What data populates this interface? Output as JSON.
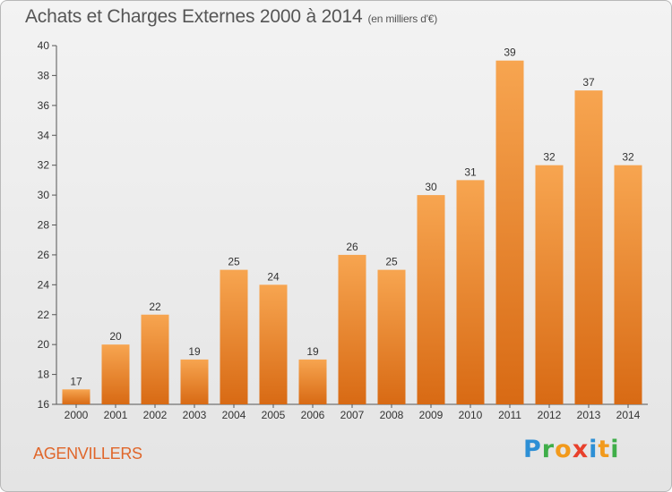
{
  "header": {
    "title": "Achats et Charges Externes 2000 à 2014",
    "unit": "(en milliers d'€)"
  },
  "footer": {
    "commune": "AGENVILLERS",
    "logo_letters": [
      "P",
      "r",
      "o",
      "x",
      "i",
      "t",
      "i"
    ],
    "logo_colors": [
      "#2d8fd5",
      "#3fae49",
      "#f29a1c",
      "#e8402c",
      "#2d8fd5",
      "#f29a1c",
      "#3fae49"
    ]
  },
  "chart_data": {
    "type": "bar",
    "categories": [
      "2000",
      "2001",
      "2002",
      "2003",
      "2004",
      "2005",
      "2006",
      "2007",
      "2008",
      "2009",
      "2010",
      "2011",
      "2012",
      "2013",
      "2014"
    ],
    "values": [
      17,
      20,
      22,
      19,
      25,
      24,
      19,
      26,
      25,
      30,
      31,
      39,
      32,
      37,
      32
    ],
    "ylim": [
      16,
      40
    ],
    "yticks": [
      16,
      18,
      20,
      22,
      24,
      26,
      28,
      30,
      32,
      34,
      36,
      38,
      40
    ],
    "grid": false,
    "colors": {
      "bar_top": "#f7a550",
      "bar_bottom": "#d86a14",
      "axis": "#555555"
    }
  }
}
